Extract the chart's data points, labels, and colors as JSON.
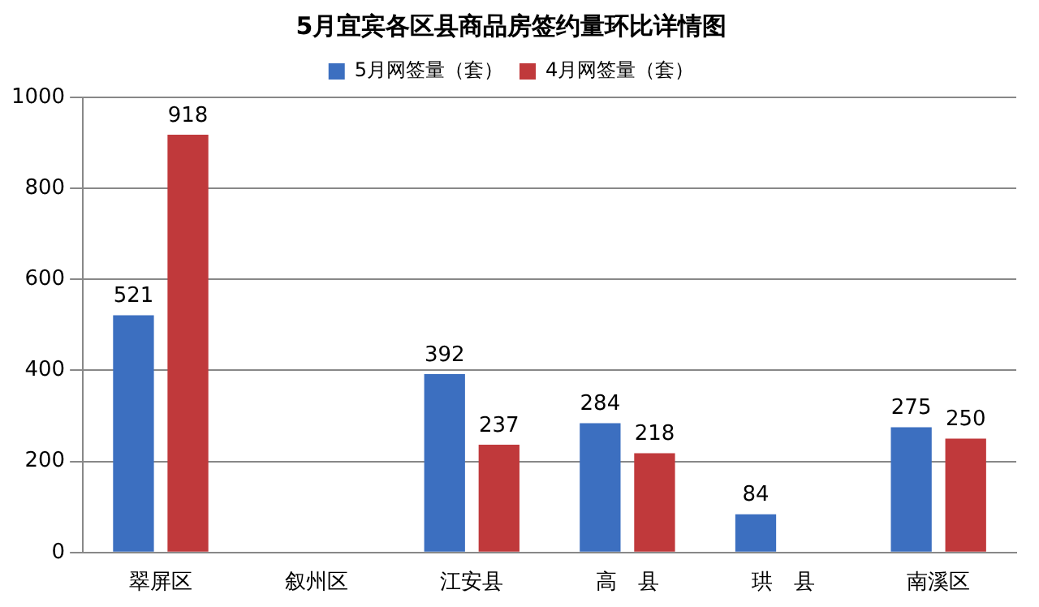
{
  "chart_data": {
    "type": "bar",
    "title": "5月宜宾各区县商品房签约量环比详情图",
    "categories": [
      "翠屏区",
      "叙州区",
      "江安县",
      "高　县",
      "珙　县",
      "南溪区"
    ],
    "series": [
      {
        "name": "5月网签量（套）",
        "color": "#3c6fc0",
        "values": [
          521,
          null,
          392,
          284,
          84,
          275
        ]
      },
      {
        "name": "4月网签量（套）",
        "color": "#c0393b",
        "values": [
          918,
          null,
          237,
          218,
          null,
          250
        ]
      }
    ],
    "ylim": [
      0,
      1000
    ],
    "yticks": [
      0,
      200,
      400,
      600,
      800,
      1000
    ],
    "grid": "y",
    "legend": "top",
    "data_labels": true
  }
}
